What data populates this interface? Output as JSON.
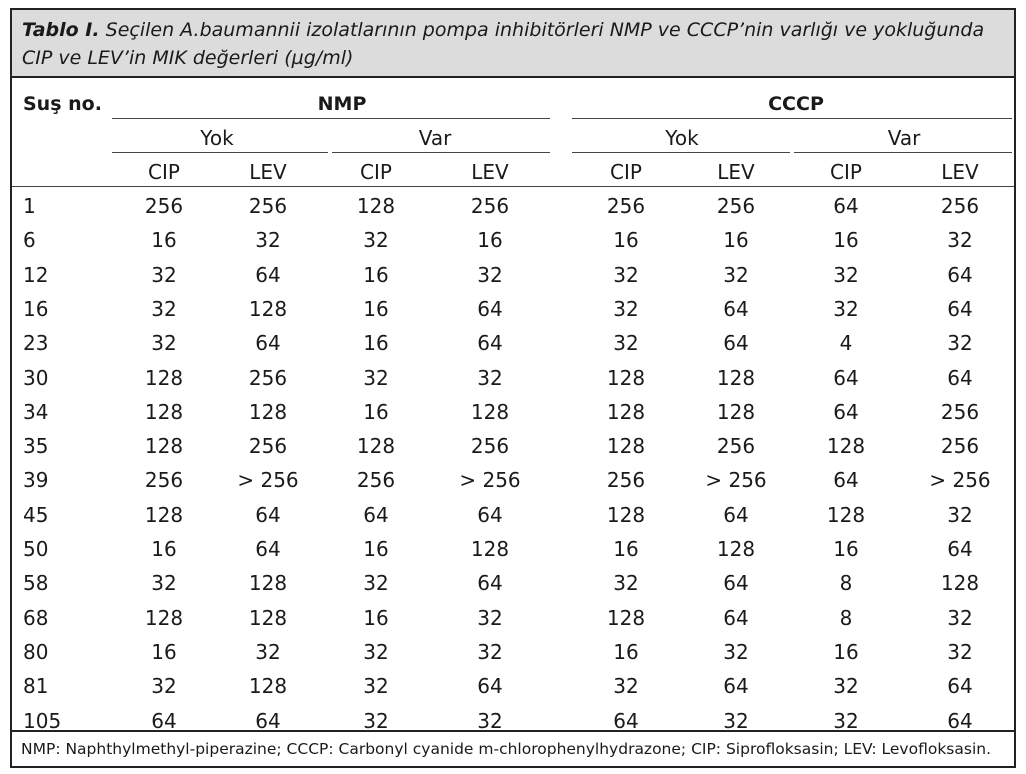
{
  "caption": {
    "label": "Tablo I.",
    "text": " Seçilen A.baumannii izolatlarının pompa inhibitörleri NMP ve CCCP’nin varlığı ve yokluğunda CIP ve LEV’in MIK değerleri (µg/ml)"
  },
  "table": {
    "row_header": "Suş no.",
    "groups": [
      {
        "name": "NMP",
        "subgroups": [
          "Yok",
          "Var"
        ]
      },
      {
        "name": "CCCP",
        "subgroups": [
          "Yok",
          "Var"
        ]
      }
    ],
    "columns": [
      "CIP",
      "LEV",
      "CIP",
      "LEV",
      "CIP",
      "LEV",
      "CIP",
      "LEV"
    ],
    "rows": [
      {
        "id": "1",
        "values": [
          "256",
          "256",
          "128",
          "256",
          "256",
          "256",
          "64",
          "256"
        ]
      },
      {
        "id": "6",
        "values": [
          "16",
          "32",
          "32",
          "16",
          "16",
          "16",
          "16",
          "32"
        ]
      },
      {
        "id": "12",
        "values": [
          "32",
          "64",
          "16",
          "32",
          "32",
          "32",
          "32",
          "64"
        ]
      },
      {
        "id": "16",
        "values": [
          "32",
          "128",
          "16",
          "64",
          "32",
          "64",
          "32",
          "64"
        ]
      },
      {
        "id": "23",
        "values": [
          "32",
          "64",
          "16",
          "64",
          "32",
          "64",
          "4",
          "32"
        ]
      },
      {
        "id": "30",
        "values": [
          "128",
          "256",
          "32",
          "32",
          "128",
          "128",
          "64",
          "64"
        ]
      },
      {
        "id": "34",
        "values": [
          "128",
          "128",
          "16",
          "128",
          "128",
          "128",
          "64",
          "256"
        ]
      },
      {
        "id": "35",
        "values": [
          "128",
          "256",
          "128",
          "256",
          "128",
          "256",
          "128",
          "256"
        ]
      },
      {
        "id": "39",
        "values": [
          "256",
          "> 256",
          "256",
          "> 256",
          "256",
          "> 256",
          "64",
          "> 256"
        ]
      },
      {
        "id": "45",
        "values": [
          "128",
          "64",
          "64",
          "64",
          "128",
          "64",
          "128",
          "32"
        ]
      },
      {
        "id": "50",
        "values": [
          "16",
          "64",
          "16",
          "128",
          "16",
          "128",
          "16",
          "64"
        ]
      },
      {
        "id": "58",
        "values": [
          "32",
          "128",
          "32",
          "64",
          "32",
          "64",
          "8",
          "128"
        ]
      },
      {
        "id": "68",
        "values": [
          "128",
          "128",
          "16",
          "32",
          "128",
          "64",
          "8",
          "32"
        ]
      },
      {
        "id": "80",
        "values": [
          "16",
          "32",
          "32",
          "32",
          "16",
          "32",
          "16",
          "32"
        ]
      },
      {
        "id": "81",
        "values": [
          "32",
          "128",
          "32",
          "64",
          "32",
          "64",
          "32",
          "64"
        ]
      },
      {
        "id": "105",
        "values": [
          "64",
          "64",
          "32",
          "32",
          "64",
          "32",
          "32",
          "64"
        ]
      }
    ]
  },
  "footnote": "NMP: Naphthylmethyl-piperazine; CCCP: Carbonyl cyanide m-chlorophenylhydrazone; CIP: Siprofloksasin; LEV: Levofloksasin."
}
